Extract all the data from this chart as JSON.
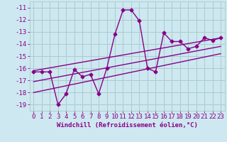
{
  "xlabel": "Windchill (Refroidissement éolien,°C)",
  "background_color": "#cde8f0",
  "grid_color": "#aacccc",
  "line_color": "#880088",
  "x_data": [
    0,
    1,
    2,
    3,
    4,
    5,
    6,
    7,
    8,
    9,
    10,
    11,
    12,
    13,
    14,
    15,
    16,
    17,
    18,
    19,
    20,
    21,
    22,
    23
  ],
  "y_main": [
    -16.3,
    -16.3,
    -16.3,
    -19.0,
    -18.1,
    -16.1,
    -16.7,
    -16.5,
    -18.1,
    -16.0,
    -13.2,
    -11.2,
    -11.2,
    -12.1,
    -16.0,
    -16.3,
    -13.1,
    -13.8,
    -13.8,
    -14.4,
    -14.2,
    -13.5,
    -13.7,
    -13.5
  ],
  "y_line1_x": [
    0,
    23
  ],
  "y_line1_y": [
    -16.2,
    -13.5
  ],
  "y_line2_x": [
    0,
    23
  ],
  "y_line2_y": [
    -17.1,
    -14.2
  ],
  "y_line3_x": [
    0,
    23
  ],
  "y_line3_y": [
    -18.0,
    -14.8
  ],
  "ylim": [
    -19.5,
    -10.5
  ],
  "xlim": [
    -0.5,
    23.5
  ],
  "yticks": [
    -11,
    -12,
    -13,
    -14,
    -15,
    -16,
    -17,
    -18,
    -19
  ],
  "xticks": [
    0,
    1,
    2,
    3,
    4,
    5,
    6,
    7,
    8,
    9,
    10,
    11,
    12,
    13,
    14,
    15,
    16,
    17,
    18,
    19,
    20,
    21,
    22,
    23
  ],
  "marker": "D",
  "markersize": 2.5,
  "linewidth": 1.0,
  "tick_font_size": 6.5,
  "xlabel_font_size": 6.5
}
